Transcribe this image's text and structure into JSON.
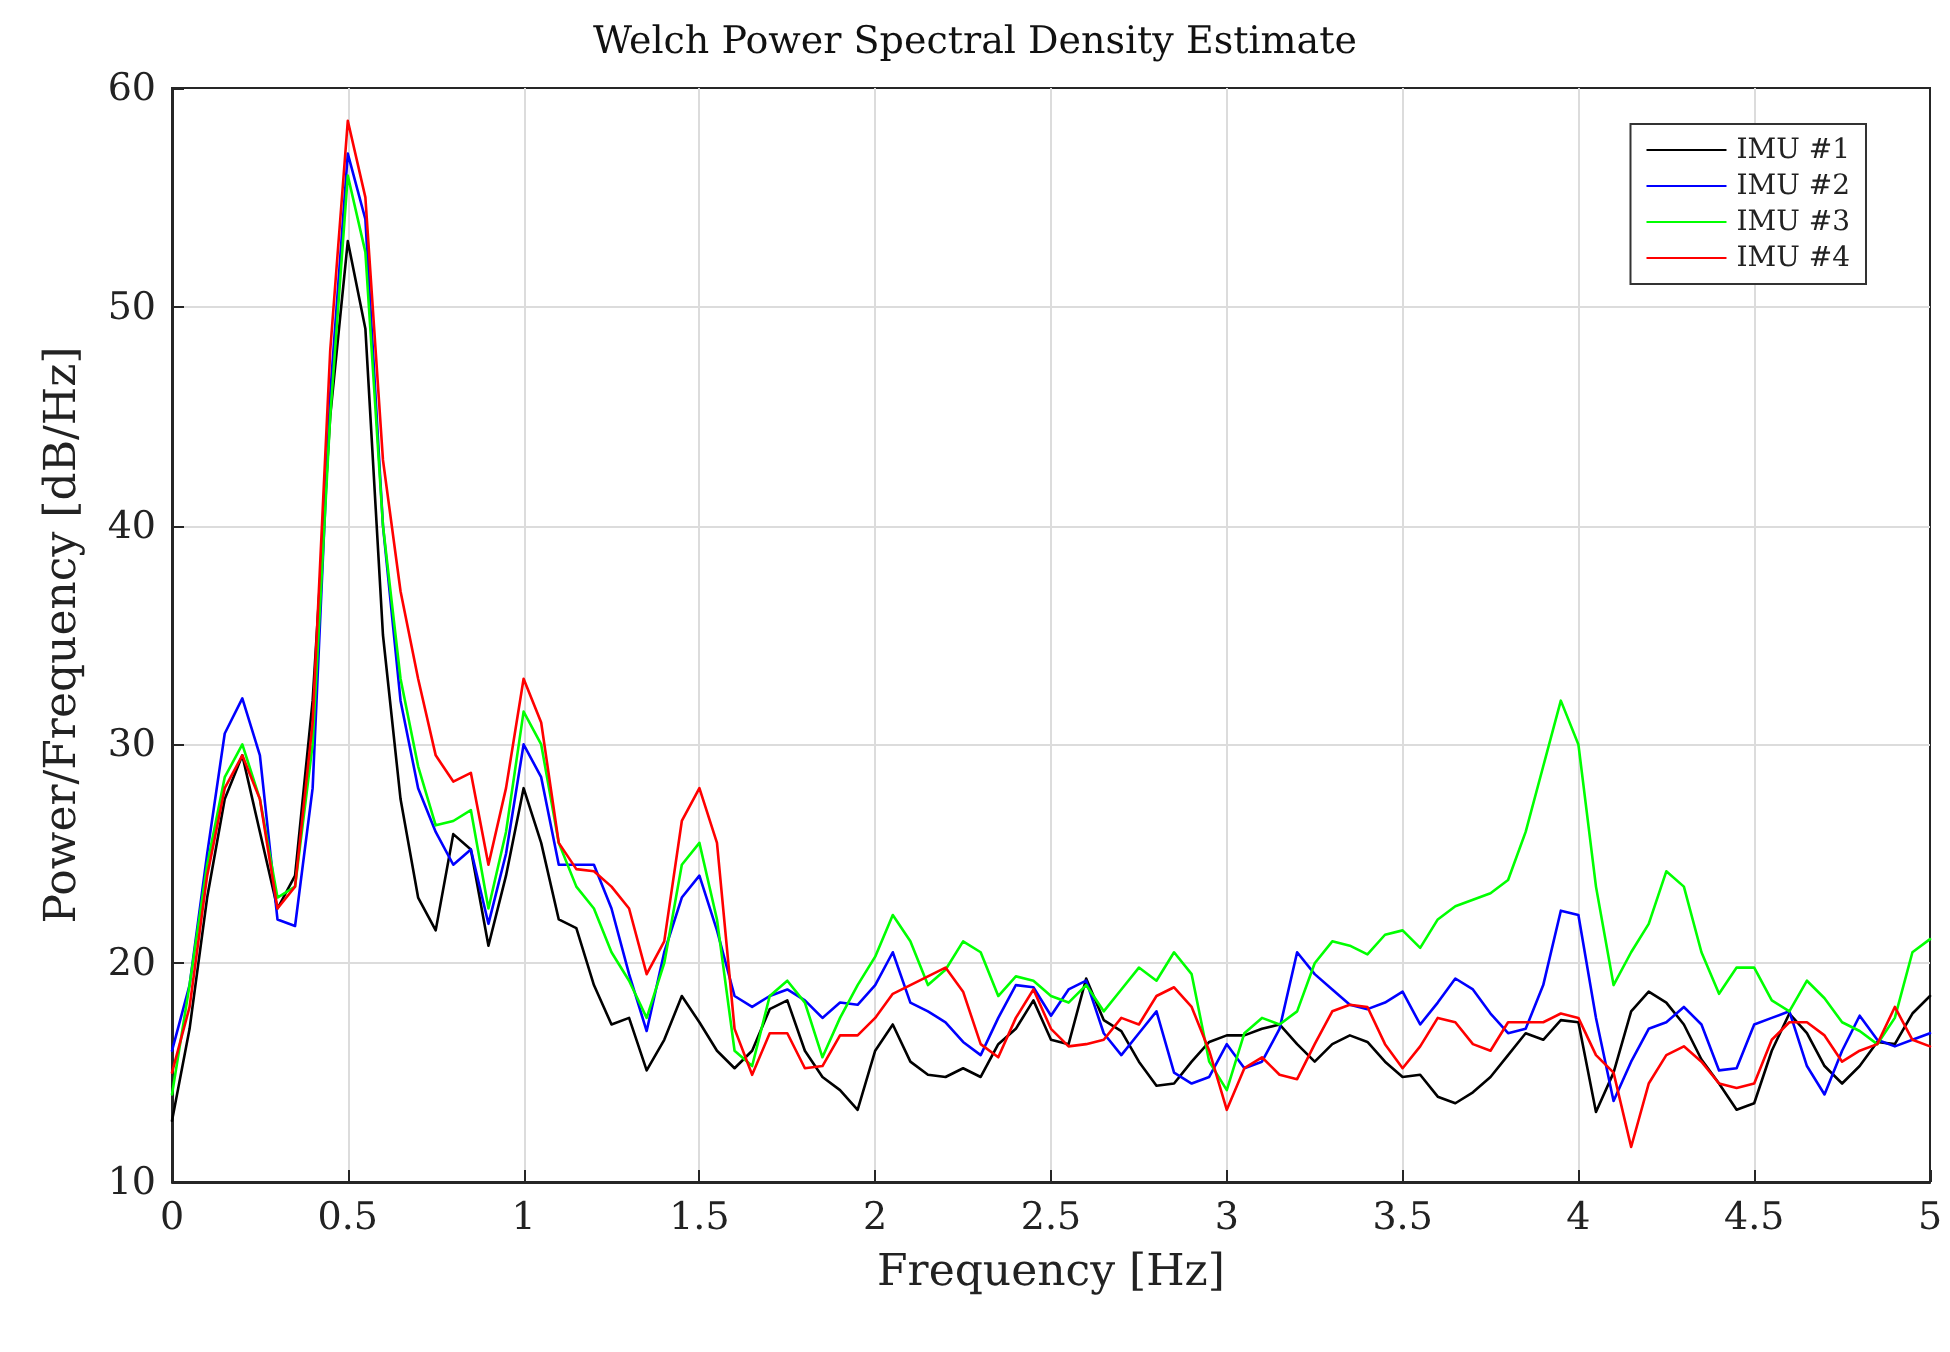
{
  "chart_data": {
    "type": "line",
    "title": "Welch Power Spectral Density Estimate",
    "xlabel": "Frequency [Hz]",
    "ylabel": "Power/Frequency [dB/Hz]",
    "x": [
      0,
      0.05,
      0.1,
      0.15,
      0.2,
      0.25,
      0.3,
      0.35,
      0.4,
      0.45,
      0.5,
      0.55,
      0.6,
      0.65,
      0.7,
      0.75,
      0.8,
      0.85,
      0.9,
      0.95,
      1,
      1.05,
      1.1,
      1.15,
      1.2,
      1.25,
      1.3,
      1.35,
      1.4,
      1.45,
      1.5,
      1.55,
      1.6,
      1.65,
      1.7,
      1.75,
      1.8,
      1.85,
      1.9,
      1.95,
      2,
      2.05,
      2.1,
      2.15,
      2.2,
      2.25,
      2.3,
      2.35,
      2.4,
      2.45,
      2.5,
      2.55,
      2.6,
      2.65,
      2.7,
      2.75,
      2.8,
      2.85,
      2.9,
      2.95,
      3,
      3.05,
      3.1,
      3.15,
      3.2,
      3.25,
      3.3,
      3.35,
      3.4,
      3.45,
      3.5,
      3.55,
      3.6,
      3.65,
      3.7,
      3.75,
      3.8,
      3.85,
      3.9,
      3.95,
      4,
      4.05,
      4.1,
      4.15,
      4.2,
      4.25,
      4.3,
      4.35,
      4.4,
      4.45,
      4.5,
      4.55,
      4.6,
      4.65,
      4.7,
      4.75,
      4.8,
      4.85,
      4.9,
      4.95,
      5
    ],
    "series": [
      {
        "name": "IMU #1",
        "color": "#000000",
        "values": [
          12.8,
          17,
          23,
          27.5,
          29.5,
          26,
          22.5,
          24,
          32,
          45,
          53,
          49,
          35,
          27.5,
          23,
          21.5,
          25.9,
          25.2,
          20.8,
          24,
          28,
          25.5,
          22,
          21.6,
          19,
          17.2,
          17.5,
          15.1,
          16.5,
          18.5,
          17.3,
          16,
          15.2,
          16,
          17.9,
          18.3,
          16,
          14.8,
          14.2,
          13.3,
          16,
          17.2,
          15.5,
          14.9,
          14.8,
          15.2,
          14.8,
          16.3,
          17,
          18.3,
          16.5,
          16.3,
          19.3,
          17.4,
          16.9,
          15.5,
          14.4,
          14.5,
          15.5,
          16.4,
          16.7,
          16.7,
          17,
          17.2,
          16.3,
          15.5,
          16.3,
          16.7,
          16.4,
          15.5,
          14.8,
          14.9,
          13.9,
          13.6,
          14.1,
          14.8,
          15.8,
          16.8,
          16.5,
          17.4,
          17.3,
          13.2,
          15,
          17.8,
          18.7,
          18.2,
          17.2,
          15.6,
          14.5,
          13.3,
          13.6,
          16,
          17.7,
          16.8,
          15.3,
          14.5,
          15.3,
          16.4,
          16.3,
          17.7,
          18.5
        ]
      },
      {
        "name": "IMU #2",
        "color": "#0000ff",
        "values": [
          16,
          19,
          25,
          30.5,
          32.1,
          29.5,
          22,
          21.7,
          28,
          46,
          57,
          54,
          40,
          32,
          28,
          26,
          24.5,
          25.2,
          21.8,
          25,
          30,
          28.5,
          24.5,
          24.5,
          24.5,
          22.5,
          19.5,
          16.9,
          20.5,
          23,
          24,
          21.5,
          18.5,
          18,
          18.5,
          18.8,
          18.3,
          17.5,
          18.2,
          18.1,
          19,
          20.5,
          18.2,
          17.8,
          17.3,
          16.4,
          15.8,
          17.5,
          19,
          18.9,
          17.6,
          18.8,
          19.2,
          16.8,
          15.8,
          16.8,
          17.8,
          15,
          14.5,
          14.8,
          16.3,
          15.2,
          15.5,
          17,
          20.5,
          19.5,
          18.8,
          18.1,
          17.9,
          18.2,
          18.7,
          17.2,
          18.2,
          19.3,
          18.8,
          17.7,
          16.8,
          17,
          19,
          22.4,
          22.2,
          17.5,
          13.7,
          15.5,
          17,
          17.3,
          18,
          17.2,
          15.1,
          15.2,
          17.2,
          17.5,
          17.8,
          15.3,
          14,
          16,
          17.6,
          16.5,
          16.2,
          16.5,
          16.8
        ]
      },
      {
        "name": "IMU #3",
        "color": "#00ff00",
        "values": [
          14,
          19,
          24.5,
          28.5,
          30,
          27.5,
          23,
          23.5,
          30,
          45,
          56,
          52.5,
          40,
          33,
          29,
          26.3,
          26.5,
          27,
          22.5,
          26,
          31.5,
          30,
          25.5,
          23.5,
          22.5,
          20.5,
          19.2,
          17.5,
          20,
          24.5,
          25.5,
          22,
          16,
          15.3,
          18.5,
          19.2,
          18.2,
          15.7,
          17.5,
          19,
          20.3,
          22.2,
          21,
          19,
          19.7,
          21,
          20.5,
          18.5,
          19.4,
          19.2,
          18.5,
          18.2,
          19,
          17.8,
          18.8,
          19.8,
          19.2,
          20.5,
          19.5,
          15.5,
          14.2,
          16.8,
          17.5,
          17.2,
          17.8,
          20,
          21,
          20.8,
          20.4,
          21.3,
          21.5,
          20.7,
          22,
          22.6,
          22.9,
          23.2,
          23.8,
          26,
          29,
          32,
          30,
          23.5,
          19,
          20.5,
          21.8,
          24.2,
          23.5,
          20.5,
          18.6,
          19.8,
          19.8,
          18.3,
          17.8,
          19.2,
          18.4,
          17.3,
          16.9,
          16.3,
          17.5,
          20.5,
          21.1
        ]
      },
      {
        "name": "IMU #4",
        "color": "#ff0000",
        "values": [
          15,
          18,
          24,
          28,
          29.5,
          27.5,
          22.5,
          23.5,
          31,
          48,
          58.5,
          55,
          43,
          37,
          33,
          29.5,
          28.3,
          28.7,
          24.5,
          28,
          33,
          31,
          25.5,
          24.3,
          24.2,
          23.5,
          22.5,
          19.5,
          21,
          26.5,
          28,
          25.5,
          17,
          14.9,
          16.8,
          16.8,
          15.2,
          15.3,
          16.7,
          16.7,
          17.5,
          18.6,
          19,
          19.4,
          19.8,
          18.7,
          16.3,
          15.7,
          17.5,
          18.8,
          17,
          16.2,
          16.3,
          16.5,
          17.5,
          17.2,
          18.5,
          18.9,
          18,
          16,
          13.3,
          15.2,
          15.7,
          14.9,
          14.7,
          16.3,
          17.8,
          18.1,
          18,
          16.3,
          15.2,
          16.2,
          17.5,
          17.3,
          16.3,
          16,
          17.3,
          17.3,
          17.3,
          17.7,
          17.5,
          15.8,
          15,
          11.6,
          14.5,
          15.8,
          16.2,
          15.5,
          14.5,
          14.3,
          14.5,
          16.5,
          17.3,
          17.3,
          16.7,
          15.5,
          16,
          16.3,
          18,
          16.5,
          16.2
        ]
      }
    ],
    "xlim": [
      0,
      5
    ],
    "xticks": [
      0,
      0.5,
      1,
      1.5,
      2,
      2.5,
      3,
      3.5,
      4,
      4.5,
      5
    ],
    "ylim": [
      10,
      60
    ],
    "yticks": [
      10,
      20,
      30,
      40,
      50,
      60
    ],
    "grid": true,
    "legend": "top right",
    "marker": "none",
    "line_style": "solid"
  }
}
